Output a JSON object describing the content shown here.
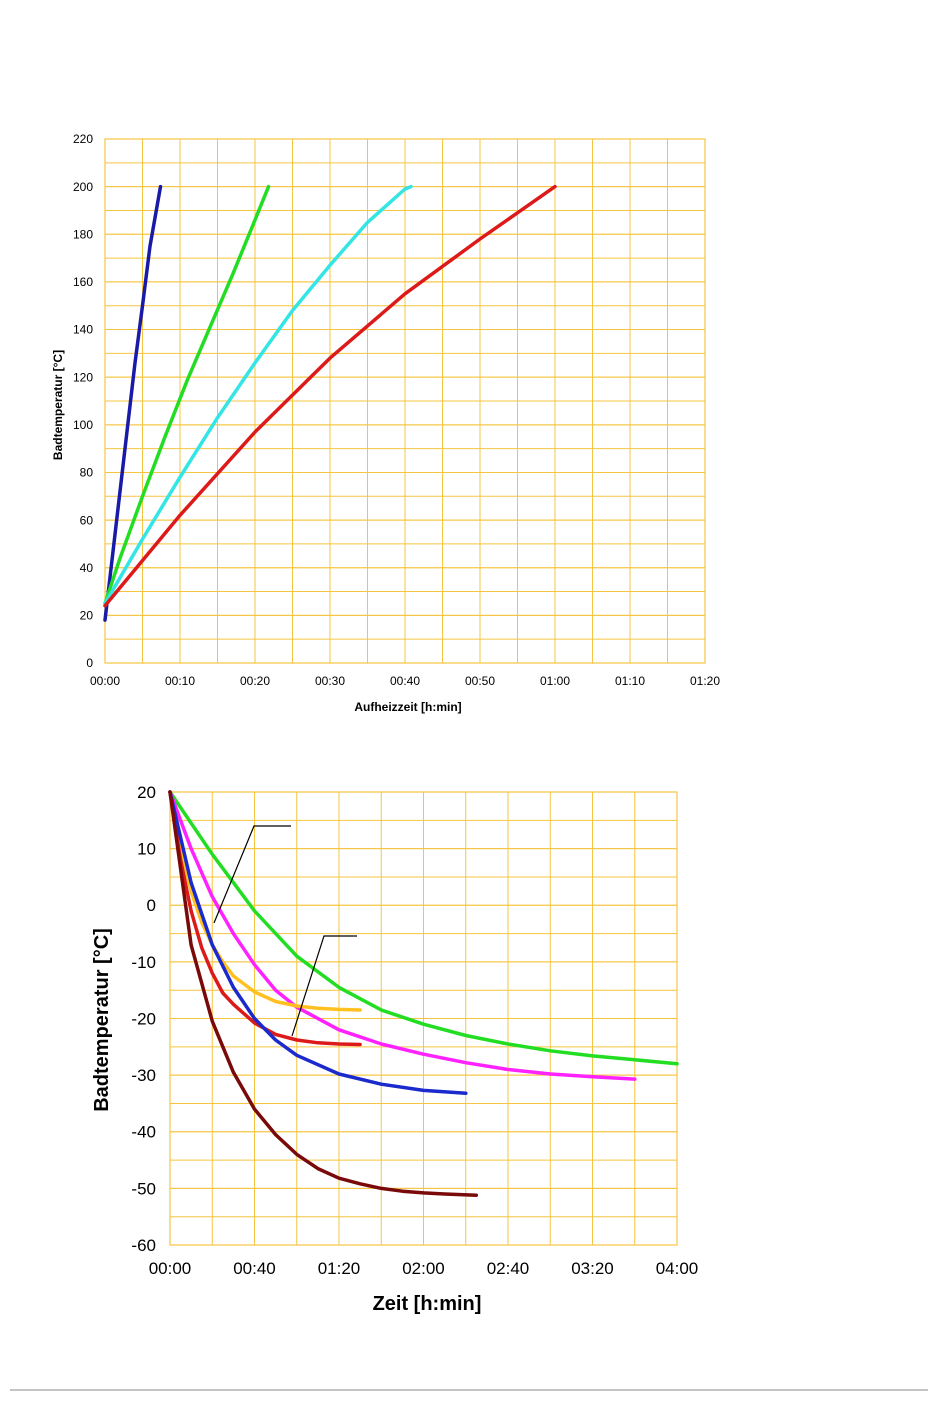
{
  "page": {
    "background": "#ffffff"
  },
  "chart_data": [
    {
      "type": "line",
      "title": "",
      "xlabel": "Aufheizzeit [h:min]",
      "ylabel": "Badtemperatur [°C]",
      "x_unit": "minutes",
      "xlim": [
        0,
        80
      ],
      "ylim": [
        0,
        220
      ],
      "x_ticks": [
        {
          "value": 0,
          "label": "00:00"
        },
        {
          "value": 10,
          "label": "00:10"
        },
        {
          "value": 20,
          "label": "00:20"
        },
        {
          "value": 30,
          "label": "00:30"
        },
        {
          "value": 40,
          "label": "00:40"
        },
        {
          "value": 50,
          "label": "00:50"
        },
        {
          "value": 60,
          "label": "01:00"
        },
        {
          "value": 70,
          "label": "01:10"
        },
        {
          "value": 80,
          "label": "01:20"
        }
      ],
      "y_ticks": [
        {
          "value": 0,
          "label": "0"
        },
        {
          "value": 20,
          "label": "20"
        },
        {
          "value": 40,
          "label": "40"
        },
        {
          "value": 60,
          "label": "60"
        },
        {
          "value": 80,
          "label": "80"
        },
        {
          "value": 100,
          "label": "100"
        },
        {
          "value": 120,
          "label": "120"
        },
        {
          "value": 140,
          "label": "140"
        },
        {
          "value": 160,
          "label": "160"
        },
        {
          "value": 180,
          "label": "180"
        },
        {
          "value": 200,
          "label": "200"
        },
        {
          "value": 220,
          "label": "220"
        }
      ],
      "grid": true,
      "grid_color": "#f5c542",
      "series": [
        {
          "color": "#1a1aa8",
          "x": [
            0,
            1,
            2,
            3,
            4,
            5,
            6,
            7.4
          ],
          "y": [
            18,
            45,
            72,
            99,
            126,
            150,
            175,
            200
          ]
        },
        {
          "color": "#22dd22",
          "x": [
            0,
            2,
            5,
            8,
            11,
            14,
            17,
            20,
            21.8
          ],
          "y": [
            25,
            44,
            70,
            95,
            119,
            141,
            163,
            186,
            200
          ]
        },
        {
          "color": "#33e5e5",
          "x": [
            0,
            5,
            10,
            15,
            20,
            25,
            30,
            35,
            40,
            40.8
          ],
          "y": [
            25,
            52,
            78,
            103,
            126,
            148,
            167,
            185,
            199,
            200
          ]
        },
        {
          "color": "#dd1a1a",
          "x": [
            0,
            10,
            20,
            30,
            40,
            50,
            55,
            60
          ],
          "y": [
            24,
            62,
            97,
            128,
            155,
            178,
            189,
            200
          ]
        }
      ]
    },
    {
      "type": "line",
      "title": "",
      "xlabel": "Zeit [h:min]",
      "ylabel": "Badtemperatur [°C]",
      "x_unit": "minutes",
      "xlim": [
        0,
        240
      ],
      "ylim": [
        -60,
        20
      ],
      "x_ticks": [
        {
          "value": 0,
          "label": "00:00"
        },
        {
          "value": 40,
          "label": "00:40"
        },
        {
          "value": 80,
          "label": "01:20"
        },
        {
          "value": 120,
          "label": "02:00"
        },
        {
          "value": 160,
          "label": "02:40"
        },
        {
          "value": 200,
          "label": "03:20"
        },
        {
          "value": 240,
          "label": "04:00"
        }
      ],
      "y_ticks": [
        {
          "value": -60,
          "label": "-60"
        },
        {
          "value": -50,
          "label": "-50"
        },
        {
          "value": -40,
          "label": "-40"
        },
        {
          "value": -30,
          "label": "-30"
        },
        {
          "value": -20,
          "label": "-20"
        },
        {
          "value": -10,
          "label": "-10"
        },
        {
          "value": 0,
          "label": "0"
        },
        {
          "value": 10,
          "label": "10"
        },
        {
          "value": 20,
          "label": "20"
        }
      ],
      "grid": true,
      "grid_color": "#f5c542",
      "series": [
        {
          "color": "#22dd22",
          "x": [
            0,
            20,
            40,
            60,
            80,
            100,
            120,
            140,
            160,
            180,
            200,
            220,
            240
          ],
          "y": [
            20,
            9,
            -1,
            -9,
            -14.5,
            -18.5,
            -21,
            -23,
            -24.5,
            -25.7,
            -26.6,
            -27.3,
            -28
          ]
        },
        {
          "color": "#ff22ff",
          "x": [
            0,
            10,
            20,
            30,
            40,
            50,
            60,
            80,
            100,
            120,
            140,
            160,
            180,
            200,
            220
          ],
          "y": [
            20,
            10,
            1.5,
            -5,
            -10.5,
            -15,
            -18,
            -22,
            -24.5,
            -26.3,
            -27.8,
            -29,
            -29.8,
            -30.3,
            -30.7
          ]
        },
        {
          "color": "#ffc020",
          "x": [
            0,
            5,
            10,
            15,
            20,
            25,
            30,
            40,
            50,
            60,
            70,
            80,
            90
          ],
          "y": [
            20,
            10,
            2.5,
            -3,
            -7,
            -10,
            -12.5,
            -15.3,
            -17,
            -17.8,
            -18.2,
            -18.4,
            -18.5
          ]
        },
        {
          "color": "#dd1a1a",
          "x": [
            0,
            5,
            10,
            15,
            20,
            25,
            30,
            40,
            50,
            60,
            70,
            80,
            90
          ],
          "y": [
            20,
            8,
            -1,
            -7.5,
            -12,
            -15.5,
            -17.5,
            -20.8,
            -22.8,
            -23.8,
            -24.3,
            -24.5,
            -24.6
          ]
        },
        {
          "color": "#1a2acc",
          "x": [
            0,
            10,
            20,
            30,
            40,
            50,
            60,
            80,
            100,
            120,
            140
          ],
          "y": [
            20,
            4,
            -7,
            -14.5,
            -20,
            -23.8,
            -26.5,
            -29.8,
            -31.6,
            -32.7,
            -33.2
          ]
        },
        {
          "color": "#7a0a0a",
          "x": [
            0,
            10,
            20,
            30,
            40,
            50,
            60,
            70,
            80,
            90,
            100,
            110,
            120,
            130,
            145
          ],
          "y": [
            20,
            -7,
            -20.5,
            -29.5,
            -36,
            -40.5,
            -44,
            -46.5,
            -48.2,
            -49.2,
            -50,
            -50.5,
            -50.8,
            -51,
            -51.2
          ]
        }
      ]
    }
  ]
}
